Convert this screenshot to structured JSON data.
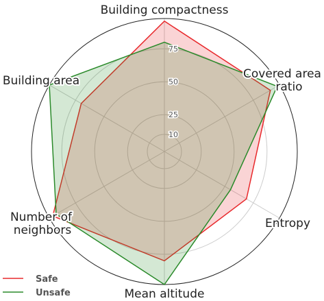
{
  "chart_data": {
    "type": "radar",
    "categories": [
      "Building compactness",
      "Covered area\nratio",
      "Entropy",
      "Mean altitude",
      "Number of\nneighbors",
      "Building area"
    ],
    "series": [
      {
        "name": "Safe",
        "color": "#e8282b",
        "values": [
          96,
          90,
          69,
          80,
          95,
          70
        ]
      },
      {
        "name": "Unsafe",
        "color": "#2a8a2a",
        "values": [
          80,
          96,
          55,
          98,
          92,
          98
        ]
      }
    ],
    "ylim": [
      -3,
      98
    ],
    "yticks": [
      10,
      25,
      50,
      75
    ],
    "grid": true,
    "legend": "lower left"
  }
}
